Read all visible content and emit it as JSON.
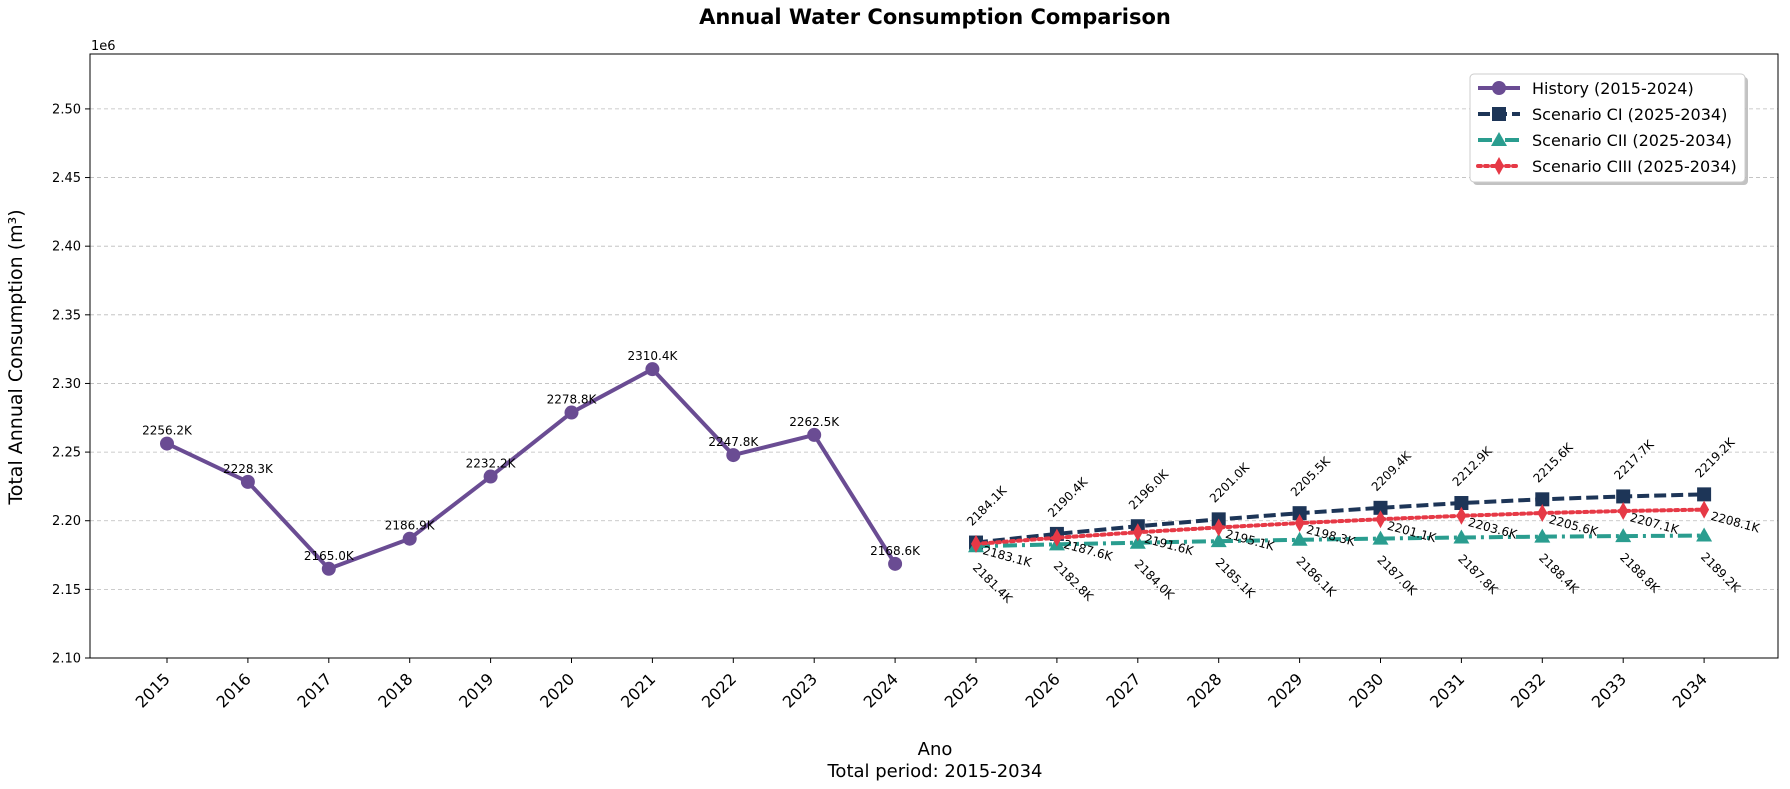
{
  "chart_data": {
    "type": "line",
    "title": "Annual Water Consumption Comparison",
    "xlabel": "Ano",
    "xlabel_sub": "Total period: 2015-2034",
    "ylabel": "Total Annual Consumption (m³)",
    "y_scale_label": "1e6",
    "ylim": [
      2.1,
      2.54
    ],
    "yticks": [
      "2.10",
      "2.15",
      "2.20",
      "2.25",
      "2.30",
      "2.35",
      "2.40",
      "2.45",
      "2.50"
    ],
    "ytick_values": [
      2.1,
      2.15,
      2.2,
      2.25,
      2.3,
      2.35,
      2.4,
      2.45,
      2.5
    ],
    "x_categories": [
      "2015",
      "2016",
      "2017",
      "2018",
      "2019",
      "2020",
      "2021",
      "2022",
      "2023",
      "2024",
      "2025",
      "2026",
      "2027",
      "2028",
      "2029",
      "2030",
      "2031",
      "2032",
      "2033",
      "2034"
    ],
    "grid": "horizontal dashed",
    "legend_position": "top-right",
    "series": [
      {
        "name": "History (2015-2024)",
        "color": "#6a4c93",
        "marker": "circle",
        "line_style": "solid",
        "x": [
          "2015",
          "2016",
          "2017",
          "2018",
          "2019",
          "2020",
          "2021",
          "2022",
          "2023",
          "2024"
        ],
        "values": [
          2.2562,
          2.2283,
          2.165,
          2.1869,
          2.2322,
          2.2788,
          2.3104,
          2.2478,
          2.2625,
          2.1686
        ],
        "labels": [
          "2256.2K",
          "2228.3K",
          "2165.0K",
          "2186.9K",
          "2232.2K",
          "2278.8K",
          "2310.4K",
          "2247.8K",
          "2262.5K",
          "2168.6K"
        ]
      },
      {
        "name": "Scenario CI (2025-2034)",
        "color": "#1d3557",
        "marker": "square",
        "line_style": "dashed",
        "x": [
          "2025",
          "2026",
          "2027",
          "2028",
          "2029",
          "2030",
          "2031",
          "2032",
          "2033",
          "2034"
        ],
        "values": [
          2.1841,
          2.1904,
          2.196,
          2.201,
          2.2055,
          2.2094,
          2.2129,
          2.2156,
          2.2177,
          2.2192
        ],
        "labels": [
          "2184.1K",
          "2190.4K",
          "2196.0K",
          "2201.0K",
          "2205.5K",
          "2209.4K",
          "2212.9K",
          "2215.6K",
          "2217.7K",
          "2219.2K"
        ]
      },
      {
        "name": "Scenario CII (2025-2034)",
        "color": "#2a9d8f",
        "marker": "triangle",
        "line_style": "dashdot",
        "x": [
          "2025",
          "2026",
          "2027",
          "2028",
          "2029",
          "2030",
          "2031",
          "2032",
          "2033",
          "2034"
        ],
        "values": [
          2.1814,
          2.1828,
          2.184,
          2.1851,
          2.1861,
          2.187,
          2.1878,
          2.1884,
          2.1888,
          2.1892
        ],
        "labels": [
          "2181.4K",
          "2182.8K",
          "2184.0K",
          "2185.1K",
          "2186.1K",
          "2187.0K",
          "2187.8K",
          "2188.4K",
          "2188.8K",
          "2189.2K"
        ]
      },
      {
        "name": "Scenario CIII (2025-2034)",
        "color": "#e63946",
        "marker": "diamond",
        "line_style": "dotted",
        "x": [
          "2025",
          "2026",
          "2027",
          "2028",
          "2029",
          "2030",
          "2031",
          "2032",
          "2033",
          "2034"
        ],
        "values": [
          2.1831,
          2.1876,
          2.1916,
          2.1951,
          2.1983,
          2.2011,
          2.2036,
          2.2056,
          2.2071,
          2.2081
        ],
        "labels": [
          "2183.1K",
          "2187.6K",
          "2191.6K",
          "2195.1K",
          "2198.3K",
          "2201.1K",
          "2203.6K",
          "2205.6K",
          "2207.1K",
          "2208.1K"
        ]
      }
    ]
  }
}
